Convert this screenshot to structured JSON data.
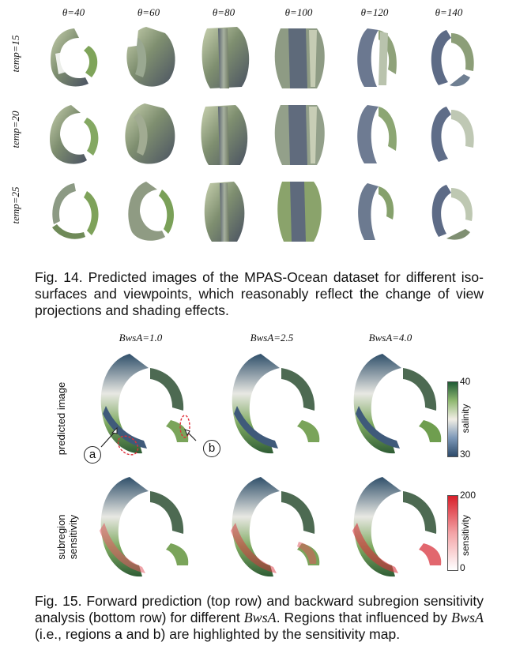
{
  "fig14": {
    "columns": [
      "θ=40",
      "θ=60",
      "θ=80",
      "θ=100",
      "θ=120",
      "θ=140"
    ],
    "rows": [
      "temp=15",
      "temp=20",
      "temp=25"
    ],
    "caption": "Fig. 14. Predicted images of the MPAS-Ocean dataset for different iso-surfaces and viewpoints, which reasonably reflect the change of view projections and shading effects."
  },
  "fig15": {
    "columns": [
      "BwsA=1.0",
      "BwsA=2.5",
      "BwsA=4.0"
    ],
    "row_labels": [
      "predicted image",
      "subregion sensitivity"
    ],
    "markers": [
      "a",
      "b"
    ],
    "colorbar_salinity": {
      "title": "salinity",
      "max": "40",
      "min": "30",
      "colors": [
        "#1f5a35",
        "#8fb870",
        "#f1eee5",
        "#7d98b8",
        "#2d4a6a"
      ]
    },
    "colorbar_sensitivity": {
      "title": "sensitivity",
      "max": "200",
      "min": "0",
      "colors": [
        "#d81f2a",
        "#f3a3a6",
        "#ffffff"
      ]
    },
    "caption_prefix": "Fig. 15. Forward prediction (top row) and backward subregion sensitivity analysis (bottom row) for different ",
    "caption_var1": "BwsA",
    "caption_mid": ". Regions that influenced by ",
    "caption_var2": "BwsA",
    "caption_suffix": " (i.e., regions a and b) are highlighted by the sensitivity map."
  }
}
